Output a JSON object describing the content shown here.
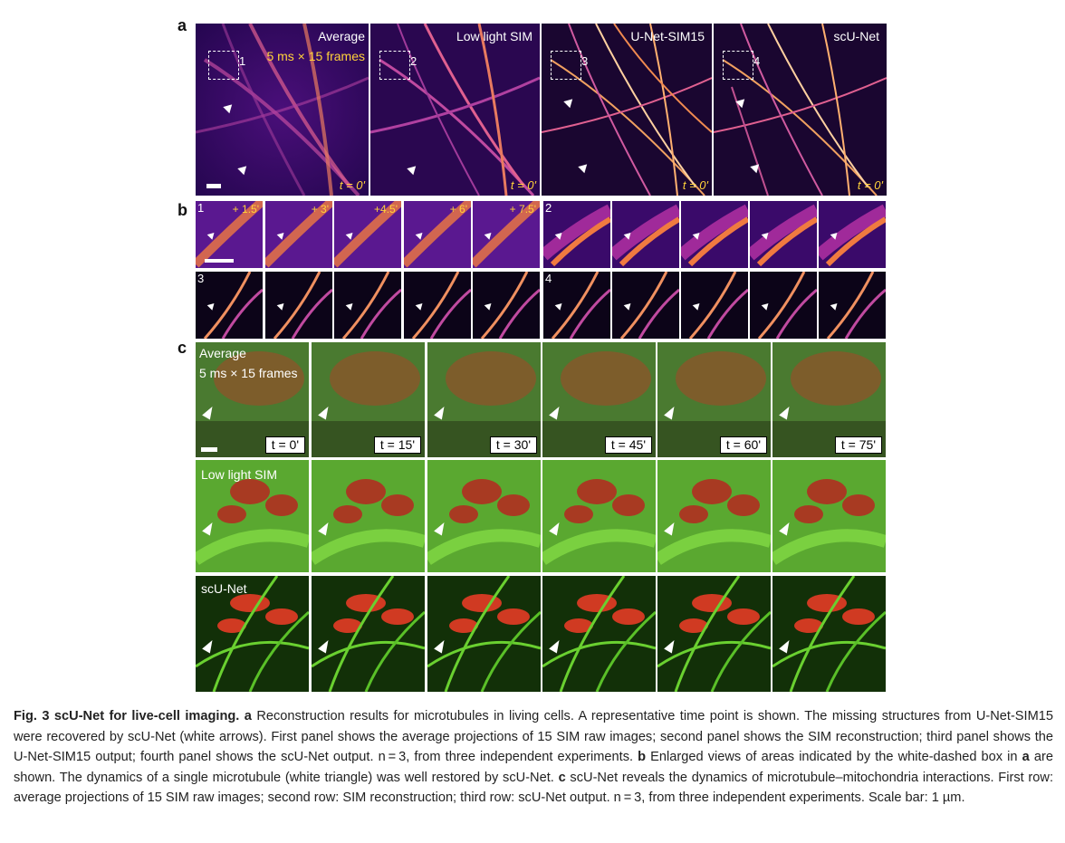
{
  "panels": {
    "a": {
      "letter": "a",
      "tiles": [
        {
          "title": "Average",
          "subtitle": "5 ms × 15 frames",
          "box": "1",
          "time": "t = 0'"
        },
        {
          "title": "Low light SIM",
          "box": "2",
          "time": "t = 0'"
        },
        {
          "title": "U-Net-SIM15",
          "box": "3",
          "time": "t = 0'"
        },
        {
          "title": "scU-Net",
          "box": "4",
          "time": "t = 0'"
        }
      ]
    },
    "b": {
      "letter": "b",
      "row1_times": [
        "+ 1.5'",
        "+ 3'",
        "+4.5'",
        "+ 6'",
        "+ 7.5'"
      ],
      "labels": [
        "1",
        "2",
        "3",
        "4"
      ]
    },
    "c": {
      "letter": "c",
      "rows": [
        {
          "title": "Average",
          "subtitle": "5 ms × 15 frames"
        },
        {
          "title": "Low light SIM"
        },
        {
          "title": "scU-Net"
        }
      ],
      "times": [
        "t = 0'",
        "t = 15'",
        "t = 30'",
        "t = 45'",
        "t = 60'",
        "t = 75'"
      ]
    }
  },
  "caption": {
    "title": "Fig. 3 scU-Net for live-cell imaging.",
    "a_letter": "a",
    "a_text": " Reconstruction results for microtubules in living cells. A representative time point is shown. The missing structures from U-Net-SIM15 were recovered by scU-Net (white arrows). First panel shows the average projections of 15 SIM raw images; second panel shows the SIM reconstruction; third panel shows the U-Net-SIM15 output; fourth panel shows the scU-Net output. n = 3, from three independent experiments. ",
    "b_letter": "b",
    "b_text": " Enlarged views of areas indicated by the white-dashed box in ",
    "b_ref": "a",
    "b_text2": " are shown. The dynamics of a single microtubule (white triangle) was well restored by scU-Net. ",
    "c_letter": "c",
    "c_text": " scU-Net reveals the dynamics of microtubule–mitochondria interactions. First row: average projections of 15 SIM raw images; second row: SIM reconstruction; third row: scU-Net output. n = 3, from three independent experiments. Scale bar: 1 µm."
  },
  "colors": {
    "magma_bg": "#3a0a6a",
    "magma_line": "#f08a2a",
    "green": "#4caf20",
    "red": "#c83a22"
  }
}
